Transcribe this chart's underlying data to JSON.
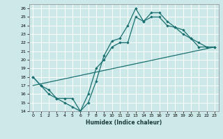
{
  "xlabel": "Humidex (Indice chaleur)",
  "bg_color": "#cce8e8",
  "grid_color": "#ffffff",
  "line_color": "#1a7070",
  "xlim": [
    -0.5,
    23.5
  ],
  "ylim": [
    14,
    26.5
  ],
  "xticks": [
    0,
    1,
    2,
    3,
    4,
    5,
    6,
    7,
    8,
    9,
    10,
    11,
    12,
    13,
    14,
    15,
    16,
    17,
    18,
    19,
    20,
    21,
    22,
    23
  ],
  "yticks": [
    14,
    15,
    16,
    17,
    18,
    19,
    20,
    21,
    22,
    23,
    24,
    25,
    26
  ],
  "line1_x": [
    0,
    1,
    2,
    3,
    4,
    5,
    6,
    7,
    8,
    9,
    10,
    11,
    12,
    13,
    14,
    15,
    16,
    17,
    18,
    19,
    20,
    21,
    22,
    23
  ],
  "line1_y": [
    18,
    17,
    16,
    15.5,
    15.5,
    15.5,
    14,
    15,
    17.5,
    20.5,
    22.2,
    22.5,
    24,
    26,
    24.5,
    25.5,
    25.5,
    24.5,
    23.8,
    23.5,
    22.5,
    22,
    21.5,
    21.5
  ],
  "line2_x": [
    0,
    1,
    2,
    3,
    4,
    5,
    6,
    7,
    8,
    9,
    10,
    11,
    12,
    13,
    14,
    15,
    16,
    17,
    18,
    19,
    20,
    21,
    22,
    23
  ],
  "line2_y": [
    18,
    17,
    16.5,
    15.5,
    15,
    14.5,
    14,
    16,
    19,
    20,
    21.5,
    22,
    22,
    25,
    24.5,
    25,
    25,
    24,
    23.8,
    23,
    22.5,
    21.5,
    21.5,
    21.5
  ],
  "line3_x": [
    0,
    23
  ],
  "line3_y": [
    17,
    21.5
  ]
}
